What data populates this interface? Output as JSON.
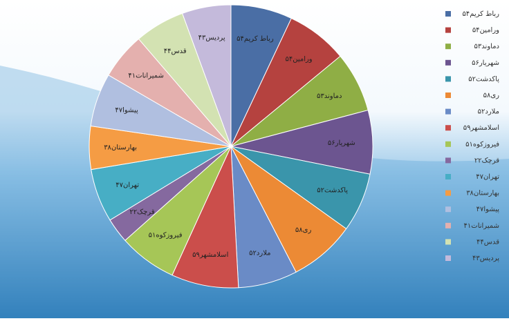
{
  "chart_data": {
    "type": "pie",
    "categories": [
      "رباط کریم۵۴",
      "ورامین۵۴",
      "دماوند۵۳",
      "شهریار۵۶",
      "پاکدشت۵۲",
      "ری۵۸",
      "ملارد۵۲",
      "اسلامشهر۵۹",
      "فیروزکوه۵۱",
      "قرچک۲۲",
      "تهران۴۷",
      "بهارستان۳۸",
      "پیشوا۴۷",
      "شمیرانات۴۱",
      "قدس۴۴",
      "پردیس۴۳"
    ],
    "values": [
      54,
      54,
      53,
      56,
      52,
      58,
      52,
      59,
      51,
      22,
      47,
      38,
      47,
      41,
      44,
      43
    ],
    "colors": [
      "#4a6ea5",
      "#b5423f",
      "#8fae45",
      "#6c5590",
      "#3a95ab",
      "#ec8a35",
      "#6a8bc6",
      "#cb4e4b",
      "#a6c657",
      "#85699f",
      "#47aec5",
      "#f59c44",
      "#b0bfe0",
      "#e4b0ae",
      "#d3e2b2",
      "#c4badb"
    ],
    "legend": "right"
  }
}
